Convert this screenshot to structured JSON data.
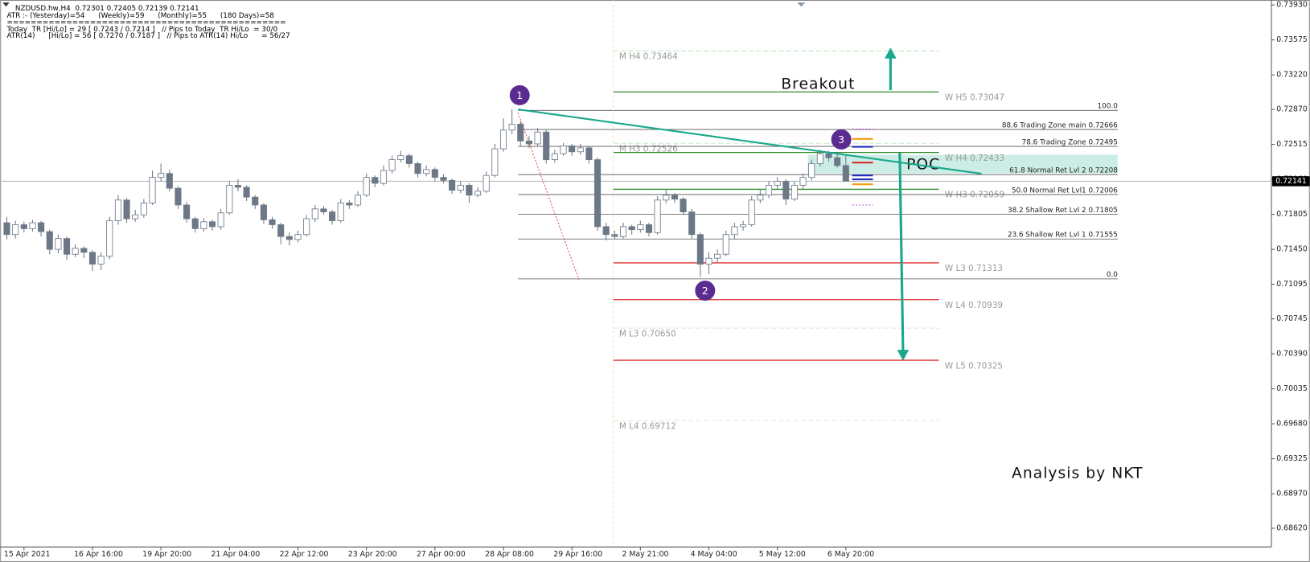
{
  "header": [
    "NZDUSD.hw,H4  0.72301 0.72405 0.72139 0.72141",
    "ATR :- (Yesterday)=54      (Weekly)=59      (Monthly)=55      (180 Days)=58",
    "===============================================",
    "Today  TR [Hi/Lo] = 29 [ 0.7243 / 0.7214 ]   // Pips to Today  TR Hi/Lo  = 30/0",
    "ATR(14)      [Hi/Lo] = 56 [ 0.7270 / 0.7187 ]   // Pips to ATR(14) Hi/Lo      = 56/27"
  ],
  "chart_data": {
    "type": "candlestick",
    "categories": [
      null,
      null,
      "15 Apr 2021",
      null,
      null,
      null,
      null,
      null,
      null,
      null,
      "16 Apr 16:00",
      null,
      null,
      null,
      null,
      null,
      null,
      null,
      "19 Apr 20:00",
      null,
      null,
      null,
      null,
      null,
      null,
      null,
      "21 Apr 04:00",
      null,
      null,
      null,
      null,
      null,
      null,
      null,
      "22 Apr 12:00",
      null,
      null,
      null,
      null,
      null,
      null,
      null,
      "23 Apr 20:00",
      null,
      null,
      null,
      null,
      null,
      null,
      null,
      "27 Apr 00:00",
      null,
      null,
      null,
      null,
      null,
      null,
      null,
      "28 Apr 08:00",
      null,
      null,
      null,
      null,
      null,
      null,
      null,
      "29 Apr 16:00",
      null,
      null,
      null,
      null,
      null,
      null,
      null,
      "2 May 21:00",
      null,
      null,
      null,
      null,
      null,
      null,
      null,
      "4 May 04:00",
      null,
      null,
      null,
      null,
      null,
      null,
      null,
      "5 May 12:00",
      null,
      null,
      null,
      null,
      null,
      null,
      null,
      "6 May 20:00"
    ],
    "values": [
      [
        0.7172,
        0.7178,
        0.7155,
        0.716
      ],
      [
        0.716,
        0.7174,
        0.7156,
        0.717
      ],
      [
        0.717,
        0.7173,
        0.7162,
        0.7166
      ],
      [
        0.7166,
        0.7175,
        0.7163,
        0.7172
      ],
      [
        0.7172,
        0.7174,
        0.7158,
        0.7163
      ],
      [
        0.7163,
        0.7165,
        0.714,
        0.7145
      ],
      [
        0.7145,
        0.716,
        0.7141,
        0.7156
      ],
      [
        0.7156,
        0.7158,
        0.7134,
        0.714
      ],
      [
        0.714,
        0.715,
        0.7137,
        0.7146
      ],
      [
        0.7146,
        0.7148,
        0.7136,
        0.7142
      ],
      [
        0.7142,
        0.7144,
        0.7123,
        0.713
      ],
      [
        0.713,
        0.7142,
        0.7124,
        0.7138
      ],
      [
        0.7138,
        0.7178,
        0.7135,
        0.7174
      ],
      [
        0.7174,
        0.72,
        0.717,
        0.7195
      ],
      [
        0.7195,
        0.7197,
        0.7172,
        0.7176
      ],
      [
        0.7176,
        0.7185,
        0.7173,
        0.718
      ],
      [
        0.718,
        0.7196,
        0.7177,
        0.7192
      ],
      [
        0.7192,
        0.7225,
        0.719,
        0.7218
      ],
      [
        0.7218,
        0.7232,
        0.7214,
        0.7222
      ],
      [
        0.7222,
        0.7226,
        0.7204,
        0.7207
      ],
      [
        0.7207,
        0.7209,
        0.7186,
        0.719
      ],
      [
        0.719,
        0.7193,
        0.7172,
        0.7176
      ],
      [
        0.7176,
        0.7178,
        0.7162,
        0.7166
      ],
      [
        0.7166,
        0.7177,
        0.7163,
        0.7173
      ],
      [
        0.7173,
        0.7175,
        0.7164,
        0.7168
      ],
      [
        0.7168,
        0.7186,
        0.7165,
        0.7182
      ],
      [
        0.7182,
        0.7214,
        0.718,
        0.721
      ],
      [
        0.721,
        0.7216,
        0.7204,
        0.7208
      ],
      [
        0.7208,
        0.721,
        0.7194,
        0.7198
      ],
      [
        0.7198,
        0.72,
        0.7186,
        0.719
      ],
      [
        0.719,
        0.7192,
        0.7171,
        0.7175
      ],
      [
        0.7175,
        0.7178,
        0.7166,
        0.717
      ],
      [
        0.717,
        0.7172,
        0.715,
        0.7158
      ],
      [
        0.7158,
        0.7162,
        0.7149,
        0.7155
      ],
      [
        0.7155,
        0.7164,
        0.7152,
        0.716
      ],
      [
        0.716,
        0.718,
        0.7158,
        0.7176
      ],
      [
        0.7176,
        0.719,
        0.7173,
        0.7186
      ],
      [
        0.7186,
        0.7189,
        0.718,
        0.7183
      ],
      [
        0.7183,
        0.7185,
        0.717,
        0.7174
      ],
      [
        0.7174,
        0.7196,
        0.7172,
        0.7192
      ],
      [
        0.7192,
        0.7195,
        0.7186,
        0.719
      ],
      [
        0.719,
        0.7204,
        0.7188,
        0.72
      ],
      [
        0.72,
        0.7222,
        0.7198,
        0.7218
      ],
      [
        0.7218,
        0.722,
        0.7208,
        0.7212
      ],
      [
        0.7212,
        0.723,
        0.721,
        0.7225
      ],
      [
        0.7225,
        0.724,
        0.7222,
        0.7236
      ],
      [
        0.7236,
        0.7245,
        0.7233,
        0.724
      ],
      [
        0.724,
        0.7242,
        0.7228,
        0.7232
      ],
      [
        0.7232,
        0.7234,
        0.7218,
        0.7222
      ],
      [
        0.7222,
        0.723,
        0.7219,
        0.7226
      ],
      [
        0.7226,
        0.7228,
        0.7214,
        0.7218
      ],
      [
        0.7218,
        0.7221,
        0.7212,
        0.7215
      ],
      [
        0.7215,
        0.7217,
        0.7201,
        0.7205
      ],
      [
        0.7205,
        0.7214,
        0.7202,
        0.721
      ],
      [
        0.721,
        0.7212,
        0.7192,
        0.72
      ],
      [
        0.72,
        0.7208,
        0.7198,
        0.7204
      ],
      [
        0.7204,
        0.7224,
        0.7202,
        0.722
      ],
      [
        0.722,
        0.7252,
        0.7218,
        0.7247
      ],
      [
        0.7247,
        0.7278,
        0.7244,
        0.7266
      ],
      [
        0.7266,
        0.7287,
        0.7262,
        0.7272
      ],
      [
        0.7272,
        0.7275,
        0.725,
        0.7255
      ],
      [
        0.7255,
        0.726,
        0.7248,
        0.7252
      ],
      [
        0.7252,
        0.7268,
        0.725,
        0.7264
      ],
      [
        0.7264,
        0.7266,
        0.7232,
        0.7236
      ],
      [
        0.7236,
        0.7246,
        0.7233,
        0.7242
      ],
      [
        0.7242,
        0.7253,
        0.724,
        0.725
      ],
      [
        0.725,
        0.7252,
        0.724,
        0.7244
      ],
      [
        0.7244,
        0.7252,
        0.7241,
        0.7248
      ],
      [
        0.7248,
        0.725,
        0.7232,
        0.7236
      ],
      [
        0.7236,
        0.7238,
        0.7164,
        0.7168
      ],
      [
        0.7168,
        0.7172,
        0.7154,
        0.716
      ],
      [
        0.716,
        0.7164,
        0.7155,
        0.7158
      ],
      [
        0.7158,
        0.7172,
        0.7156,
        0.7168
      ],
      [
        0.7168,
        0.717,
        0.716,
        0.7165
      ],
      [
        0.7165,
        0.7174,
        0.7162,
        0.717
      ],
      [
        0.717,
        0.7172,
        0.7158,
        0.7162
      ],
      [
        0.7162,
        0.7199,
        0.716,
        0.7195
      ],
      [
        0.7195,
        0.7206,
        0.7192,
        0.72
      ],
      [
        0.72,
        0.7202,
        0.7192,
        0.7196
      ],
      [
        0.7196,
        0.7198,
        0.718,
        0.7183
      ],
      [
        0.7183,
        0.7186,
        0.7156,
        0.716
      ],
      [
        0.716,
        0.7162,
        0.7117,
        0.713
      ],
      [
        0.713,
        0.7142,
        0.712,
        0.7136
      ],
      [
        0.7136,
        0.7145,
        0.7132,
        0.714
      ],
      [
        0.714,
        0.7164,
        0.7138,
        0.716
      ],
      [
        0.716,
        0.7172,
        0.7156,
        0.7168
      ],
      [
        0.7168,
        0.7174,
        0.7164,
        0.717
      ],
      [
        0.717,
        0.7199,
        0.7168,
        0.7195
      ],
      [
        0.7195,
        0.7205,
        0.7192,
        0.72
      ],
      [
        0.72,
        0.7214,
        0.7197,
        0.721
      ],
      [
        0.721,
        0.7218,
        0.7206,
        0.7214
      ],
      [
        0.7214,
        0.7216,
        0.719,
        0.7196
      ],
      [
        0.7196,
        0.7214,
        0.7194,
        0.721
      ],
      [
        0.721,
        0.7222,
        0.7205,
        0.7218
      ],
      [
        0.7218,
        0.7236,
        0.7215,
        0.7232
      ],
      [
        0.7232,
        0.7246,
        0.7229,
        0.7242
      ],
      [
        0.7242,
        0.7245,
        0.7234,
        0.7238
      ],
      [
        0.7238,
        0.7244,
        0.7228,
        0.723
      ],
      [
        0.72301,
        0.72405,
        0.72139,
        0.72141
      ]
    ],
    "up_color": "#ffffff",
    "down_color": "#6d7887",
    "ylim": [
      0.6843,
      0.7398
    ],
    "yticks": [
      {
        "value": 0.7393,
        "label": "0.73930"
      },
      0.73575,
      {
        "value": 0.7322,
        "label": "0.73220"
      },
      {
        "value": 0.7287,
        "label": "0.72870"
      },
      0.72515,
      {
        "value": 0.7216,
        "label": "0.72160"
      },
      0.71805,
      {
        "value": 0.7145,
        "label": "0.71450"
      },
      0.71095,
      0.70745,
      {
        "value": 0.7039,
        "label": "0.70390"
      },
      0.70035,
      {
        "value": 0.6968,
        "label": "0.69680"
      },
      0.69325,
      {
        "value": 0.6897,
        "label": "0.68970"
      },
      {
        "value": 0.6862,
        "label": "0.68620"
      }
    ],
    "current_price": 0.72141,
    "pivots": [
      {
        "label": "M H4 0.73464",
        "price": 0.73464,
        "color": "#b8e8b8",
        "style": "dashed"
      },
      {
        "label": "W H5 0.73047",
        "price": 0.73047,
        "color": "#2e8b2e",
        "style": "solid"
      },
      {
        "label": "M H3 0.72526",
        "price": 0.72526,
        "color": "#c8e8c8",
        "style": "dashed"
      },
      {
        "label": "W H4 0.72433",
        "price": 0.72433,
        "color": "#2e8b2e",
        "style": "solid"
      },
      {
        "label": "W H3 0.72059",
        "price": 0.72059,
        "color": "#2e8b2e",
        "style": "solid"
      },
      {
        "label": "W L3 0.71313",
        "price": 0.71313,
        "color": "#e03030",
        "style": "solid"
      },
      {
        "label": "W L4 0.70939",
        "price": 0.70939,
        "color": "#e03030",
        "style": "solid"
      },
      {
        "label": "M L3 0.70650",
        "price": 0.7065,
        "color": "#f4dede",
        "style": "dashed"
      },
      {
        "label": "W L5 0.70325",
        "price": 0.70325,
        "color": "#e03030",
        "style": "solid"
      },
      {
        "label": "M L4 0.69712",
        "price": 0.69712,
        "color": "#d4ecd4",
        "style": "dashed"
      }
    ],
    "fibs": [
      {
        "label": "100.0",
        "price": 0.7286
      },
      {
        "label": "88.6 Trading Zone main 0.72666",
        "price": 0.72666
      },
      {
        "label": "78.6 Trading Zone 0.72495",
        "price": 0.72495
      },
      {
        "label": "61.8 Normal Ret Lvl 2 0.72208",
        "price": 0.72208
      },
      {
        "label": "50.0 Normal Ret Lvl1 0.72006",
        "price": 0.72006
      },
      {
        "label": "38.2 Shallow Ret Lvl 2 0.71805",
        "price": 0.71805
      },
      {
        "label": "23.6 Shallow Ret Lvl 1 0.71555",
        "price": 0.71555
      },
      {
        "label": "0.0",
        "price": 0.7115
      }
    ],
    "markers": [
      {
        "price": 0.7267,
        "color": "#b050d0",
        "style": "dashed"
      },
      {
        "price": 0.7257,
        "color": "#f39c12",
        "style": "solid"
      },
      {
        "price": 0.7249,
        "color": "#1f2fbf",
        "style": "solid"
      },
      {
        "price": 0.7233,
        "color": "#d62020",
        "style": "solid"
      },
      {
        "price": 0.722,
        "color": "#1f2fbf",
        "style": "solid"
      },
      {
        "price": 0.7216,
        "color": "#1f2fbf",
        "style": "solid"
      },
      {
        "price": 0.7211,
        "color": "#f39c12",
        "style": "solid"
      },
      {
        "price": 0.719,
        "color": "#b050d0",
        "style": "dashed"
      }
    ],
    "poc": {
      "label": "POC",
      "top": 0.7241,
      "bottom": 0.7222
    },
    "annotations": {
      "points": [
        "1",
        "2",
        "3"
      ],
      "breakout": "Breakout",
      "credit": "Analysis by NKT"
    }
  }
}
